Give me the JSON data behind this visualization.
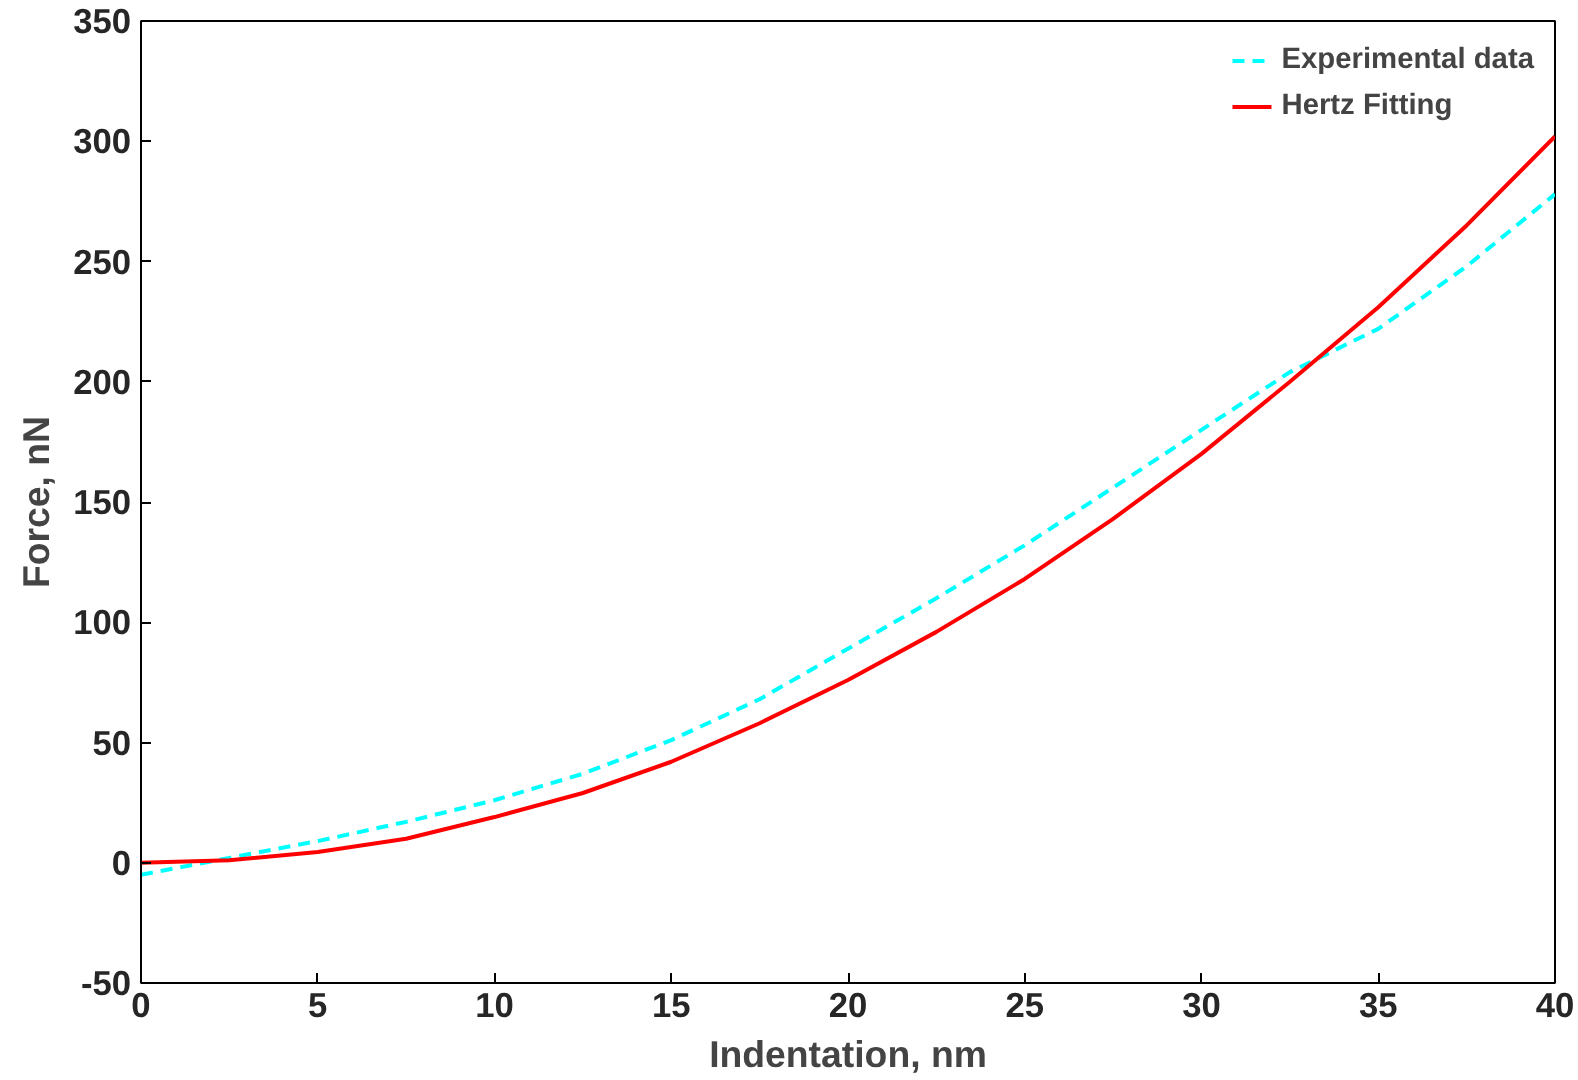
{
  "chart_data": {
    "type": "line",
    "xlabel": "Indentation, nm",
    "ylabel": "Force, nN",
    "xlim": [
      0,
      40
    ],
    "ylim": [
      -50,
      350
    ],
    "xticks": [
      0,
      5,
      10,
      15,
      20,
      25,
      30,
      35,
      40
    ],
    "yticks": [
      -50,
      0,
      50,
      100,
      150,
      200,
      250,
      300,
      350
    ],
    "x": [
      0,
      2.5,
      5,
      7.5,
      10,
      12.5,
      15,
      17.5,
      20,
      22.5,
      25,
      27.5,
      30,
      32.5,
      35,
      37.5,
      40
    ],
    "series": [
      {
        "name": "Experimental data",
        "color": "#00ffff",
        "line_style": "dashed",
        "values": [
          -5,
          2,
          9,
          17,
          26,
          37,
          51,
          68,
          89,
          110,
          132,
          156,
          180,
          204,
          222,
          248,
          278
        ]
      },
      {
        "name": "Hertz Fitting",
        "color": "#ff0000",
        "line_style": "solid",
        "values": [
          0,
          1,
          4.5,
          10,
          19,
          29,
          42,
          58,
          76,
          96,
          118,
          143,
          170,
          200,
          231,
          265,
          302
        ]
      }
    ],
    "grid": false,
    "legend": "top right"
  }
}
